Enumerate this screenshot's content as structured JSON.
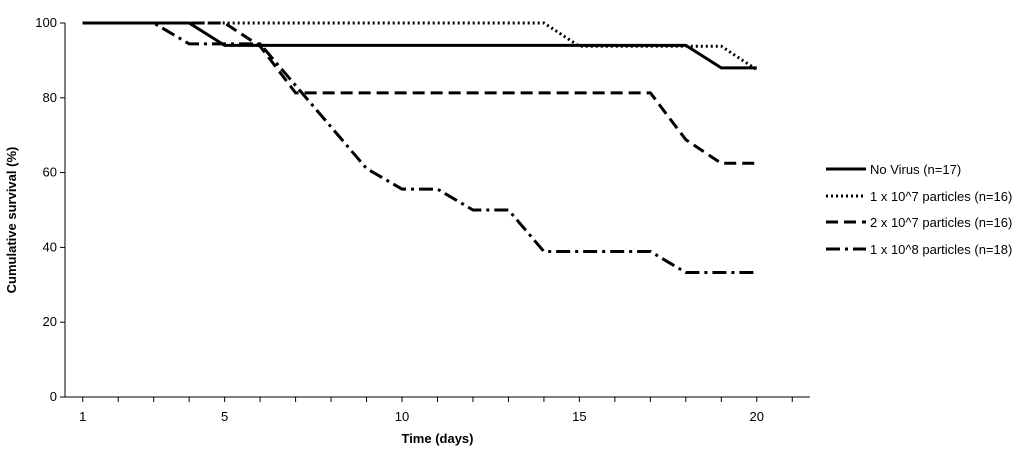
{
  "chart_data": {
    "type": "line",
    "xlabel": "Time (days)",
    "ylabel": "Cumulative survival (%)",
    "xlim": [
      0.5,
      21.5
    ],
    "ylim": [
      0,
      100
    ],
    "x_ticks": [
      1,
      5,
      10,
      15,
      20
    ],
    "y_ticks": [
      0,
      20,
      40,
      60,
      80,
      100
    ],
    "grid": false,
    "legend_position": "right",
    "series": [
      {
        "name": "No Virus (n=17)",
        "style": "solid",
        "color": "#000000",
        "points": [
          [
            1,
            100
          ],
          [
            4,
            100
          ],
          [
            5,
            94
          ],
          [
            18,
            94
          ],
          [
            19,
            88
          ],
          [
            20,
            88
          ]
        ]
      },
      {
        "name": "1 x 10^7 particles (n=16)",
        "style": "dotted",
        "color": "#000000",
        "points": [
          [
            1,
            100
          ],
          [
            14,
            100
          ],
          [
            15,
            93.8
          ],
          [
            19,
            93.8
          ],
          [
            20,
            87.5
          ]
        ]
      },
      {
        "name": "2 x 10^7 particles (n=16)",
        "style": "dashed",
        "color": "#000000",
        "points": [
          [
            1,
            100
          ],
          [
            5,
            100
          ],
          [
            6,
            93.8
          ],
          [
            7,
            81.3
          ],
          [
            17,
            81.3
          ],
          [
            18,
            68.8
          ],
          [
            19,
            62.5
          ],
          [
            20,
            62.5
          ]
        ]
      },
      {
        "name": "1 x 10^8 particles (n=18)",
        "style": "dashdot",
        "color": "#000000",
        "points": [
          [
            1,
            100
          ],
          [
            3,
            100
          ],
          [
            4,
            94.4
          ],
          [
            5,
            94.4
          ],
          [
            6,
            94.4
          ],
          [
            7,
            83.3
          ],
          [
            8,
            72.2
          ],
          [
            9,
            61.1
          ],
          [
            10,
            55.6
          ],
          [
            11,
            55.6
          ],
          [
            12,
            50
          ],
          [
            13,
            50
          ],
          [
            14,
            38.9
          ],
          [
            17,
            38.9
          ],
          [
            18,
            33.3
          ],
          [
            20,
            33.3
          ]
        ]
      }
    ]
  }
}
